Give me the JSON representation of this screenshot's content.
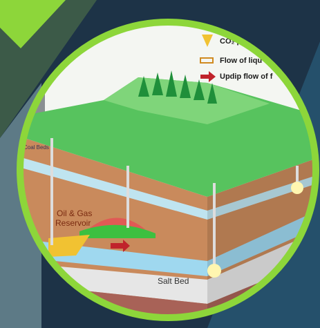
{
  "legend": [
    {
      "label": "CO₂ plu"
    },
    {
      "label": "Flow of liqu"
    },
    {
      "label": "Updip flow of f"
    }
  ],
  "labels": {
    "coal_beds": "Coal Beds",
    "reservoir_line1": "Oil & Gas",
    "reservoir_line2": "Reservoir",
    "salt_bed": "Salt Bed"
  }
}
